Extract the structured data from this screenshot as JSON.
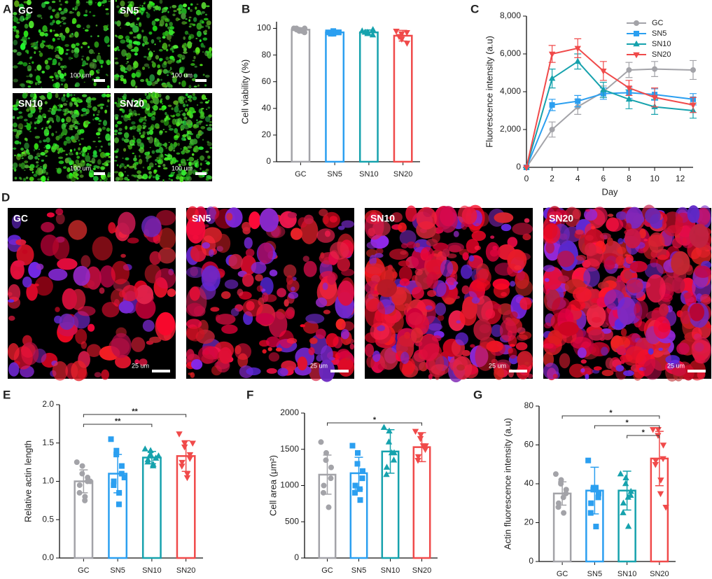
{
  "image_panels": [
    {
      "panel": "A",
      "images": [
        {
          "label": "GC",
          "scale": "100 um"
        },
        {
          "label": "SN5",
          "scale": "100 um"
        },
        {
          "label": "SN10",
          "scale": "100 um"
        },
        {
          "label": "SN20",
          "scale": "100 um"
        }
      ]
    },
    {
      "panel": "D",
      "images": [
        {
          "label": "GC",
          "scale": "25 um"
        },
        {
          "label": "SN5",
          "scale": "25 um"
        },
        {
          "label": "SN10",
          "scale": "25 um"
        },
        {
          "label": "SN20",
          "scale": "25 um"
        }
      ]
    }
  ],
  "chart_data": [
    {
      "type": "bar",
      "panel": "B",
      "ylabel": "Cell  viability (%)",
      "categories": [
        "GC",
        "SN5",
        "SN10",
        "SN20"
      ],
      "colors": [
        "#a3a3a8",
        "#2b9ff0",
        "#16a2ad",
        "#f04a4a"
      ],
      "values": [
        99,
        97,
        97,
        94.5
      ],
      "errors": [
        1.5,
        1,
        1.8,
        4
      ],
      "points": [
        [
          100,
          99,
          98,
          100,
          97,
          99,
          100,
          98
        ],
        [
          97,
          96,
          98,
          97,
          97,
          96
        ],
        [
          98,
          96,
          97,
          99,
          95,
          97
        ],
        [
          98,
          92,
          96,
          89,
          97,
          94
        ]
      ],
      "ylim": [
        0,
        105
      ],
      "yticks": [
        0,
        20,
        40,
        60,
        80,
        100
      ]
    },
    {
      "type": "line",
      "panel": "C",
      "xlabel": "Day",
      "ylabel": "Fluorescence intensity (a.u)",
      "x": [
        0,
        2,
        4,
        6,
        8,
        10,
        13
      ],
      "series": [
        {
          "name": "GC",
          "color": "#a3a3a8",
          "marker": "circle",
          "values": [
            0,
            2000,
            3200,
            4000,
            5150,
            5200,
            5150
          ],
          "errors": [
            0,
            400,
            400,
            300,
            400,
            400,
            500
          ]
        },
        {
          "name": "SN5",
          "color": "#2b9ff0",
          "marker": "square",
          "values": [
            0,
            3300,
            3500,
            3900,
            3950,
            3850,
            3600
          ],
          "errors": [
            0,
            300,
            300,
            300,
            300,
            300,
            300
          ]
        },
        {
          "name": "SN10",
          "color": "#16a2ad",
          "marker": "up",
          "values": [
            0,
            4700,
            5600,
            4100,
            3600,
            3200,
            3000
          ],
          "errors": [
            0,
            500,
            400,
            400,
            500,
            400,
            400
          ]
        },
        {
          "name": "SN20",
          "color": "#f04a4a",
          "marker": "down",
          "values": [
            0,
            6000,
            6300,
            5100,
            4200,
            3700,
            3300
          ],
          "errors": [
            0,
            450,
            500,
            500,
            400,
            500,
            400
          ]
        }
      ],
      "xlim": [
        0,
        13
      ],
      "xticks": [
        0,
        2,
        4,
        6,
        8,
        10,
        12
      ],
      "ylim": [
        0,
        8000
      ],
      "yticks": [
        0,
        {
          "value": 2000,
          "label": "2,000"
        },
        {
          "value": 4000,
          "label": "4,000"
        },
        {
          "value": 6000,
          "label": "6,000"
        },
        {
          "value": 8000,
          "label": "8,000"
        }
      ],
      "legend": "top-right"
    },
    {
      "type": "bar",
      "panel": "E",
      "ylabel": "Relative actin length",
      "categories": [
        "GC",
        "SN5",
        "SN10",
        "SN20"
      ],
      "colors": [
        "#a3a3a8",
        "#2b9ff0",
        "#16a2ad",
        "#f04a4a"
      ],
      "values": [
        1.0,
        1.1,
        1.31,
        1.33
      ],
      "errors": [
        0.15,
        0.25,
        0.08,
        0.2
      ],
      "points": [
        [
          1.25,
          1.2,
          1.1,
          1.05,
          1.0,
          0.95,
          0.85,
          0.8,
          0.75,
          1.0
        ],
        [
          1.55,
          1.4,
          1.35,
          1.2,
          1.1,
          1.0,
          0.95,
          0.85,
          0.7,
          1.05
        ],
        [
          1.42,
          1.4,
          1.35,
          1.3,
          1.3,
          1.28,
          1.25,
          1.22,
          1.2,
          1.33
        ],
        [
          1.62,
          1.5,
          1.45,
          1.35,
          1.3,
          1.25,
          1.2,
          1.1,
          1.05,
          1.5
        ]
      ],
      "brackets": [
        {
          "groups": [
            "GC",
            "SN10"
          ],
          "label": "**"
        },
        {
          "groups": [
            "GC",
            "SN20"
          ],
          "label": "**"
        }
      ],
      "ylim": [
        0,
        2.0
      ],
      "yticks": [
        {
          "value": 0,
          "label": "0.0"
        },
        0.5,
        {
          "value": 1,
          "label": "1.0"
        },
        1.5,
        {
          "value": 2,
          "label": "2.0"
        }
      ]
    },
    {
      "type": "bar",
      "panel": "F",
      "ylabel": "Cell area (μm²)",
      "categories": [
        "GC",
        "SN5",
        "SN10",
        "SN20"
      ],
      "colors": [
        "#a3a3a8",
        "#2b9ff0",
        "#16a2ad",
        "#f04a4a"
      ],
      "values": [
        1150,
        1170,
        1470,
        1530
      ],
      "errors": [
        270,
        220,
        300,
        200
      ],
      "points": [
        [
          1600,
          1450,
          1350,
          1250,
          1100,
          1000,
          900,
          700
        ],
        [
          1550,
          1450,
          1300,
          1200,
          1100,
          1000,
          900,
          800,
          950
        ],
        [
          1800,
          1750,
          1600,
          1450,
          1350,
          1250,
          1150,
          1450
        ],
        [
          1750,
          1700,
          1650,
          1550,
          1500,
          1400,
          1350,
          1550
        ]
      ],
      "brackets": [
        {
          "groups": [
            "GC",
            "SN20"
          ],
          "label": "*"
        }
      ],
      "ylim": [
        0,
        2000
      ],
      "yticks": [
        0,
        500,
        1000,
        1500,
        2000
      ]
    },
    {
      "type": "bar",
      "panel": "G",
      "ylabel": "Actin fluorescence intensity (a.u)",
      "categories": [
        "GC",
        "SN5",
        "SN10",
        "SN20"
      ],
      "colors": [
        "#a3a3a8",
        "#2b9ff0",
        "#16a2ad",
        "#f04a4a"
      ],
      "values": [
        35,
        36.5,
        36.5,
        53
      ],
      "errors": [
        6,
        12,
        10,
        14
      ],
      "points": [
        [
          45,
          42,
          40,
          37,
          35,
          30,
          28,
          25,
          33
        ],
        [
          52,
          38,
          37,
          35,
          33,
          30,
          25,
          18,
          38
        ],
        [
          45,
          43,
          40,
          36,
          34,
          30,
          25,
          18,
          33
        ],
        [
          68,
          68,
          65,
          60,
          53,
          52,
          50,
          42,
          35,
          28
        ]
      ],
      "brackets": [
        {
          "groups": [
            "SN10",
            "SN20"
          ],
          "label": "*"
        },
        {
          "groups": [
            "SN5",
            "SN20"
          ],
          "label": "*"
        },
        {
          "groups": [
            "GC",
            "SN20"
          ],
          "label": "*"
        }
      ],
      "ylim": [
        0,
        80
      ],
      "yticks": [
        0,
        20,
        40,
        60,
        80
      ]
    }
  ]
}
